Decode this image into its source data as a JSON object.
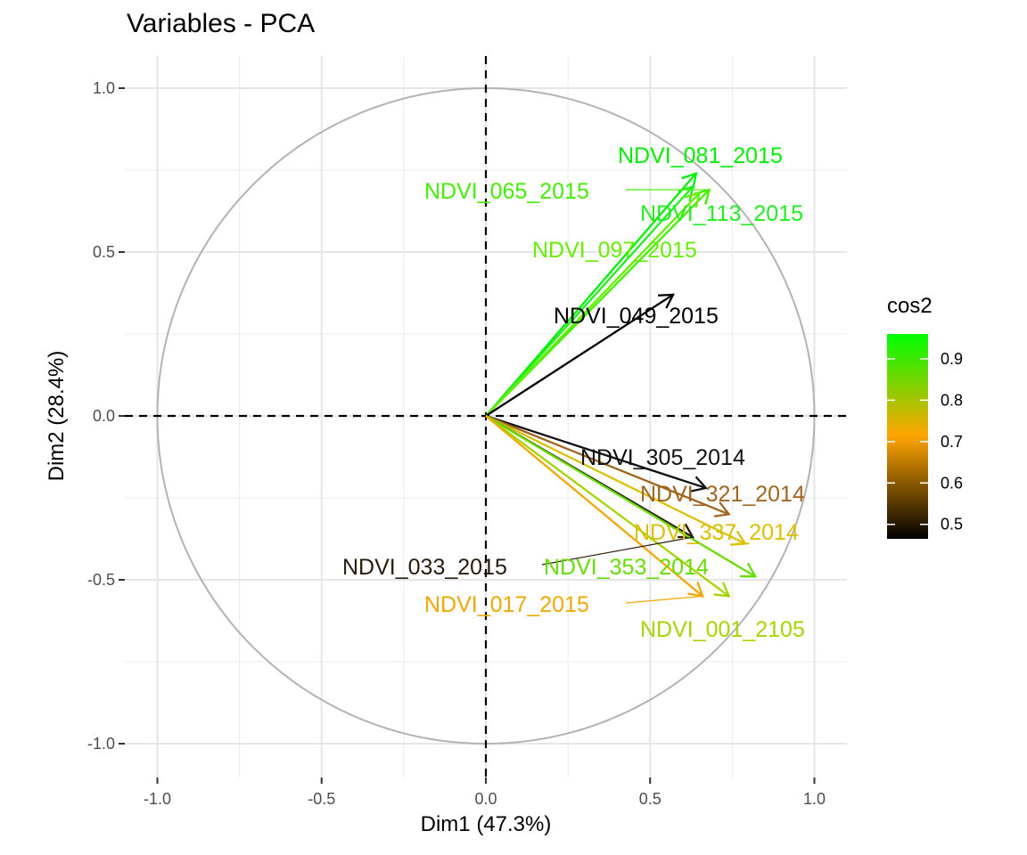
{
  "chart_data": {
    "type": "scatter",
    "subtype": "pca-variable-correlation-circle",
    "title": "Variables - PCA",
    "xlabel": "Dim1 (47.3%)",
    "ylabel": "Dim2 (28.4%)",
    "xlim": [
      -1.02,
      1.1
    ],
    "ylim": [
      -1.1,
      1.1
    ],
    "xticks": [
      -1.0,
      -0.5,
      0.0,
      0.5,
      1.0
    ],
    "xtick_labels": [
      "-1.0",
      "-0.5",
      "0.0",
      "0.5",
      "1.0"
    ],
    "yticks": [
      -1.0,
      -0.5,
      0.0,
      0.5,
      1.0
    ],
    "ytick_labels": [
      "-1.0",
      "-0.5",
      "0.0",
      "0.5",
      "1.0"
    ],
    "grid": true,
    "circle_color": "#b3b3b3",
    "legend": {
      "title": "cos2",
      "position": "right",
      "range": [
        0.465,
        0.96
      ],
      "ticks": [
        0.5,
        0.6,
        0.7,
        0.8,
        0.9
      ],
      "tick_labels": [
        "0.5",
        "0.6",
        "0.7",
        "0.8",
        "0.9"
      ],
      "gradient": [
        {
          "value": 0.465,
          "color": "#000000"
        },
        {
          "value": 0.715,
          "color": "#ffa500"
        },
        {
          "value": 0.96,
          "color": "#00ff00"
        }
      ]
    },
    "variables": [
      {
        "label": "NDVI_081_2015",
        "x": 0.64,
        "y": 0.74,
        "cos2": 0.96,
        "color": "#00ee00"
      },
      {
        "label": "NDVI_065_2015",
        "x": 0.68,
        "y": 0.69,
        "cos2": 0.94,
        "color": "#44ee00"
      },
      {
        "label": "NDVI_113_2015",
        "x": 0.63,
        "y": 0.7,
        "cos2": 0.89,
        "color": "#22ee22"
      },
      {
        "label": "NDVI_097_2015",
        "x": 0.65,
        "y": 0.68,
        "cos2": 0.87,
        "color": "#66ee00"
      },
      {
        "label": "NDVI_049_2015",
        "x": 0.57,
        "y": 0.37,
        "cos2": 0.47,
        "color": "#000000"
      },
      {
        "label": "NDVI_305_2014",
        "x": 0.67,
        "y": -0.22,
        "cos2": 0.49,
        "color": "#111111"
      },
      {
        "label": "NDVI_321_2014",
        "x": 0.74,
        "y": -0.3,
        "cos2": 0.63,
        "color": "#a0661f"
      },
      {
        "label": "NDVI_337_2014",
        "x": 0.79,
        "y": -0.39,
        "cos2": 0.78,
        "color": "#d9c000"
      },
      {
        "label": "NDVI_033_2015",
        "x": 0.63,
        "y": -0.37,
        "cos2": 0.52,
        "color": "#2a1a0a"
      },
      {
        "label": "NDVI_353_2014",
        "x": 0.82,
        "y": -0.49,
        "cos2": 0.9,
        "color": "#66dd00"
      },
      {
        "label": "NDVI_001_2105",
        "x": 0.74,
        "y": -0.55,
        "cos2": 0.84,
        "color": "#a5d400"
      },
      {
        "label": "NDVI_017_2015",
        "x": 0.66,
        "y": -0.55,
        "cos2": 0.72,
        "color": "#f0a800"
      }
    ]
  }
}
